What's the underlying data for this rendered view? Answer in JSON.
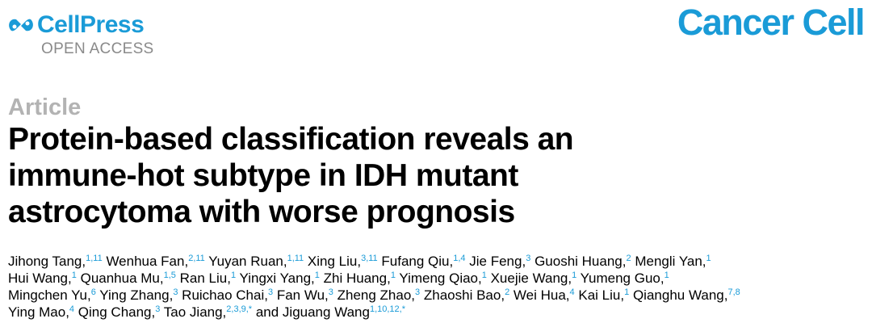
{
  "header": {
    "publisher": "CellPress",
    "open_access": "OPEN ACCESS",
    "journal": "Cancer Cell",
    "brand_color": "#1a9bd7"
  },
  "article_type": "Article",
  "title_lines": [
    "Protein-based classification reveals an",
    "immune-hot subtype in IDH mutant",
    "astrocytoma with worse prognosis"
  ],
  "author_lines": [
    [
      {
        "name": "Jihong Tang,",
        "sup": "1,11"
      },
      {
        "name": "Wenhua Fan,",
        "sup": "2,11"
      },
      {
        "name": "Yuyan Ruan,",
        "sup": "1,11"
      },
      {
        "name": "Xing Liu,",
        "sup": "3,11"
      },
      {
        "name": "Fufang Qiu,",
        "sup": "1,4"
      },
      {
        "name": "Jie Feng,",
        "sup": "3"
      },
      {
        "name": "Guoshi Huang,",
        "sup": "2"
      },
      {
        "name": "Mengli Yan,",
        "sup": "1"
      }
    ],
    [
      {
        "name": "Hui Wang,",
        "sup": "1"
      },
      {
        "name": "Quanhua Mu,",
        "sup": "1,5"
      },
      {
        "name": "Ran Liu,",
        "sup": "1"
      },
      {
        "name": "Yingxi Yang,",
        "sup": "1"
      },
      {
        "name": "Zhi Huang,",
        "sup": "1"
      },
      {
        "name": "Yimeng Qiao,",
        "sup": "1"
      },
      {
        "name": "Xuejie Wang,",
        "sup": "1"
      },
      {
        "name": "Yumeng Guo,",
        "sup": "1"
      }
    ],
    [
      {
        "name": "Mingchen Yu,",
        "sup": "6"
      },
      {
        "name": "Ying Zhang,",
        "sup": "3"
      },
      {
        "name": "Ruichao Chai,",
        "sup": "3"
      },
      {
        "name": "Fan Wu,",
        "sup": "3"
      },
      {
        "name": "Zheng Zhao,",
        "sup": "3"
      },
      {
        "name": "Zhaoshi Bao,",
        "sup": "2"
      },
      {
        "name": "Wei Hua,",
        "sup": "4"
      },
      {
        "name": "Kai Liu,",
        "sup": "1"
      },
      {
        "name": "Qianghu Wang,",
        "sup": "7,8"
      }
    ],
    [
      {
        "name": "Ying Mao,",
        "sup": "4"
      },
      {
        "name": "Qing Chang,",
        "sup": "3"
      },
      {
        "name": "Tao Jiang,",
        "sup": "2,3,9,*"
      },
      {
        "name": "and Jiguang Wang",
        "sup": "1,10,12,*"
      }
    ]
  ]
}
